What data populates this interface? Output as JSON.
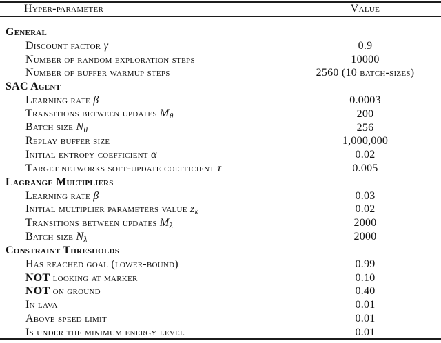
{
  "colors": {
    "text": "#131313",
    "rule": "#1c1c1c",
    "background": "#ffffff"
  },
  "table": {
    "header": {
      "param": "Hyper-parameter",
      "value": "Value"
    },
    "sections": [
      {
        "title": "General",
        "rows": [
          {
            "label": "Discount factor ",
            "math": "γ",
            "value": "0.9"
          },
          {
            "label": "Number of random exploration steps",
            "value": "10000"
          },
          {
            "label": "Number of buffer warmup steps",
            "value": "2560 (10 batch-sizes)"
          }
        ]
      },
      {
        "title": "SAC Agent",
        "rows": [
          {
            "label": "Learning rate ",
            "math": "β",
            "value": "0.0003"
          },
          {
            "label": "Transitions between updates ",
            "math": "M",
            "sub": "θ",
            "value": "200"
          },
          {
            "label": "Batch size ",
            "math": "N",
            "sub": "θ",
            "value": "256"
          },
          {
            "label": "Replay buffer size",
            "value": "1,000,000"
          },
          {
            "label": "Initial entropy coefficient ",
            "math": "α",
            "value": "0.02"
          },
          {
            "label": "Target networks soft-update coefficient ",
            "math": "τ",
            "value": "0.005"
          }
        ]
      },
      {
        "title": "Lagrange Multipliers",
        "rows": [
          {
            "label": "Learning rate ",
            "math": "β",
            "value": "0.03"
          },
          {
            "label": "Initial multiplier parameters value ",
            "math": "z",
            "sub": "k",
            "value": "0.02"
          },
          {
            "label": "Transitions between updates ",
            "math": "M",
            "sub": "λ",
            "value": "2000"
          },
          {
            "label": "Batch size ",
            "math": "N",
            "sub": "λ",
            "value": "2000"
          }
        ]
      },
      {
        "title": "Constraint Thresholds",
        "rows": [
          {
            "label": "Has reached goal (lower-bound)",
            "value": "0.99"
          },
          {
            "bold": "NOT",
            "label": " looking at marker",
            "value": "0.10"
          },
          {
            "bold": "NOT",
            "label": " on ground",
            "value": "0.40"
          },
          {
            "label": "In lava",
            "value": "0.01"
          },
          {
            "label": "Above speed limit",
            "value": "0.01"
          },
          {
            "label": "Is under the minimum energy level",
            "value": "0.01"
          }
        ]
      }
    ]
  }
}
